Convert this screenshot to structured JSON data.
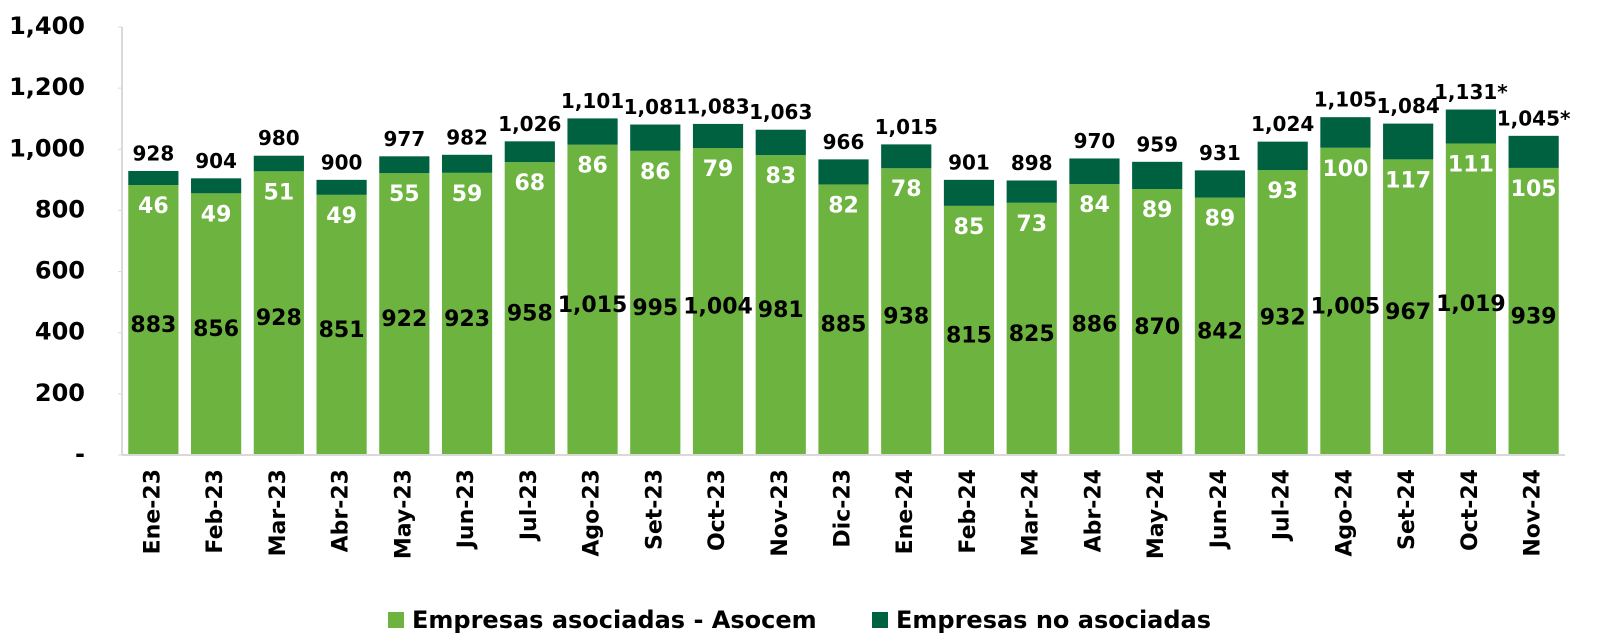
{
  "chart_data": {
    "type": "stacked_bar",
    "categories": [
      "Ene-23",
      "Feb-23",
      "Mar-23",
      "Abr-23",
      "May-23",
      "Jun-23",
      "Jul-23",
      "Ago-23",
      "Set-23",
      "Oct-23",
      "Nov-23",
      "Dic-23",
      "Ene-24",
      "Feb-24",
      "Mar-24",
      "Abr-24",
      "May-24",
      "Jun-24",
      "Jul-24",
      "Ago-24",
      "Set-24",
      "Oct-24",
      "Nov-24"
    ],
    "series": [
      {
        "name": "Empresas asociadas - Asocem",
        "color": "#6db33f",
        "values": [
          883,
          856,
          928,
          851,
          922,
          923,
          958,
          1015,
          995,
          1004,
          981,
          885,
          938,
          815,
          825,
          886,
          870,
          842,
          932,
          1005,
          967,
          1019,
          939
        ],
        "value_labels": [
          "883",
          "856",
          "928",
          "851",
          "922",
          "923",
          "958",
          "1,015",
          "995",
          "1,004",
          "981",
          "885",
          "938",
          "815",
          "825",
          "886",
          "870",
          "842",
          "932",
          "1,005",
          "967",
          "1,019",
          "939"
        ]
      },
      {
        "name": "Empresas no asociadas",
        "color": "#006141",
        "values": [
          46,
          49,
          51,
          49,
          55,
          59,
          68,
          86,
          86,
          79,
          83,
          82,
          78,
          85,
          73,
          84,
          89,
          89,
          93,
          100,
          117,
          111,
          105
        ]
      }
    ],
    "total_labels": [
      "928",
      "904",
      "980",
      "900",
      "977",
      "982",
      "1,026",
      "1,101",
      "1,081",
      "1,083",
      "1,063",
      "966",
      "1,015",
      "901",
      "898",
      "970",
      "959",
      "931",
      "1,024",
      "1,105",
      "1,084",
      "1,131*",
      "1,045*"
    ],
    "ylim": [
      0,
      1400
    ],
    "yticks": [
      {
        "value": 0,
        "label": "-"
      },
      200,
      400,
      600,
      800,
      {
        "value": 1000,
        "label": "1,000"
      },
      {
        "value": 1200,
        "label": "1,200"
      },
      {
        "value": 1400,
        "label": "1,400"
      }
    ],
    "grid": false,
    "legend": "bottom"
  }
}
